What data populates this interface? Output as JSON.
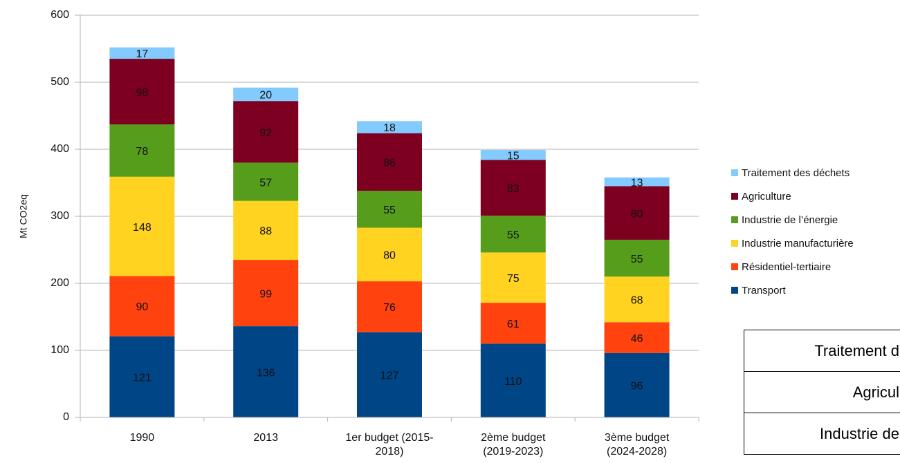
{
  "chart_data": {
    "type": "stacked-bar",
    "y_label": "Mt CO2eq",
    "categories": [
      "1990",
      "2013",
      "1er budget (2015-2018)",
      "2ème budget (2019-2023)",
      "3ème budget (2024-2028)"
    ],
    "series": [
      {
        "name": "Transport",
        "color": "#004586",
        "values": [
          121,
          136,
          127,
          110,
          96
        ]
      },
      {
        "name": "Résidentiel-tertiaire",
        "color": "#ff420e",
        "values": [
          90,
          99,
          76,
          61,
          46
        ]
      },
      {
        "name": "Industrie manufacturière",
        "color": "#ffd320",
        "values": [
          148,
          88,
          80,
          75,
          68
        ]
      },
      {
        "name": "Industrie de l’énergie",
        "color": "#579d1c",
        "values": [
          78,
          57,
          55,
          55,
          55
        ]
      },
      {
        "name": "Agriculture",
        "color": "#7e0021",
        "values": [
          98,
          92,
          86,
          83,
          80
        ]
      },
      {
        "name": "Traitement des déchets",
        "color": "#83caff",
        "values": [
          17,
          20,
          18,
          15,
          13
        ]
      }
    ],
    "ylim": [
      0,
      600
    ],
    "yticks": [
      0,
      100,
      200,
      300,
      400,
      500,
      600
    ],
    "grid": true
  },
  "table": {
    "rows": [
      "Traitement d",
      "Agricul",
      "Industrie de"
    ]
  }
}
